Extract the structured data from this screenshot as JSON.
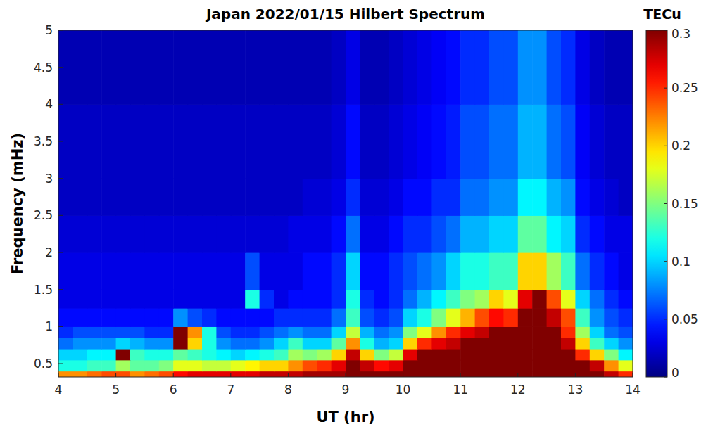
{
  "chart_data": {
    "type": "heatmap",
    "title": "Japan 2022/01/15 Hilbert Spectrum",
    "x_label": "UT (hr)",
    "y_label": "Frequency (mHz)",
    "xlim": [
      4,
      14
    ],
    "ylim": [
      0.32,
      5
    ],
    "xticks": [
      4,
      5,
      6,
      7,
      8,
      9,
      10,
      11,
      12,
      13,
      14
    ],
    "yticks": [
      0.5,
      1,
      1.5,
      2,
      2.5,
      3,
      3.5,
      4,
      4.5,
      5
    ],
    "x_edges": [
      4,
      4.25,
      4.5,
      4.75,
      5,
      5.25,
      5.5,
      5.75,
      6,
      6.25,
      6.5,
      6.75,
      7,
      7.25,
      7.5,
      7.75,
      8,
      8.25,
      8.5,
      8.75,
      9,
      9.25,
      9.5,
      9.75,
      10,
      10.25,
      10.5,
      10.75,
      11,
      11.25,
      11.5,
      11.75,
      12,
      12.25,
      12.5,
      12.75,
      13,
      13.25,
      13.5,
      13.75,
      14
    ],
    "y_edges": [
      0.32,
      0.4,
      0.55,
      0.7,
      0.85,
      1.0,
      1.25,
      1.5,
      2.0,
      2.5,
      3.0,
      4.0,
      5.0
    ],
    "cells": [
      [
        0.22,
        0.22,
        0.23,
        0.24,
        0.24,
        0.22,
        0.23,
        0.24,
        0.26,
        0.27,
        0.27,
        0.27,
        0.27,
        0.27,
        0.28,
        0.28,
        0.28,
        0.29,
        0.29,
        0.29,
        0.3,
        0.3,
        0.3,
        0.3,
        0.3,
        0.3,
        0.3,
        0.3,
        0.3,
        0.3,
        0.3,
        0.3,
        0.3,
        0.3,
        0.3,
        0.3,
        0.3,
        0.3,
        0.28,
        0.25
      ],
      [
        0.12,
        0.12,
        0.13,
        0.13,
        0.16,
        0.14,
        0.14,
        0.15,
        0.18,
        0.18,
        0.17,
        0.17,
        0.18,
        0.19,
        0.2,
        0.2,
        0.22,
        0.24,
        0.25,
        0.27,
        0.3,
        0.28,
        0.26,
        0.27,
        0.3,
        0.3,
        0.3,
        0.3,
        0.3,
        0.3,
        0.3,
        0.3,
        0.3,
        0.3,
        0.3,
        0.3,
        0.3,
        0.28,
        0.22,
        0.18
      ],
      [
        0.1,
        0.1,
        0.11,
        0.11,
        0.3,
        0.13,
        0.12,
        0.12,
        0.14,
        0.13,
        0.12,
        0.11,
        0.1,
        0.11,
        0.12,
        0.13,
        0.16,
        0.15,
        0.16,
        0.2,
        0.28,
        0.2,
        0.15,
        0.17,
        0.27,
        0.3,
        0.3,
        0.3,
        0.3,
        0.3,
        0.3,
        0.3,
        0.3,
        0.3,
        0.3,
        0.3,
        0.25,
        0.2,
        0.15,
        0.11
      ],
      [
        0.07,
        0.08,
        0.08,
        0.08,
        0.1,
        0.09,
        0.08,
        0.08,
        0.3,
        0.2,
        0.12,
        0.08,
        0.07,
        0.07,
        0.08,
        0.1,
        0.13,
        0.1,
        0.1,
        0.14,
        0.22,
        0.12,
        0.09,
        0.1,
        0.2,
        0.25,
        0.27,
        0.28,
        0.3,
        0.3,
        0.3,
        0.3,
        0.3,
        0.3,
        0.3,
        0.28,
        0.2,
        0.13,
        0.1,
        0.08
      ],
      [
        0.05,
        0.06,
        0.06,
        0.06,
        0.06,
        0.06,
        0.05,
        0.05,
        0.3,
        0.22,
        0.12,
        0.06,
        0.05,
        0.05,
        0.06,
        0.07,
        0.08,
        0.07,
        0.07,
        0.1,
        0.17,
        0.09,
        0.07,
        0.08,
        0.15,
        0.18,
        0.22,
        0.25,
        0.27,
        0.28,
        0.3,
        0.3,
        0.3,
        0.3,
        0.3,
        0.25,
        0.16,
        0.1,
        0.07,
        0.06
      ],
      [
        0.04,
        0.04,
        0.04,
        0.04,
        0.04,
        0.04,
        0.04,
        0.04,
        0.08,
        0.06,
        0.05,
        0.04,
        0.04,
        0.04,
        0.04,
        0.05,
        0.05,
        0.05,
        0.05,
        0.07,
        0.13,
        0.06,
        0.05,
        0.06,
        0.1,
        0.12,
        0.15,
        0.18,
        0.21,
        0.24,
        0.26,
        0.25,
        0.3,
        0.3,
        0.28,
        0.24,
        0.13,
        0.08,
        0.06,
        0.05
      ],
      [
        0.03,
        0.03,
        0.03,
        0.03,
        0.03,
        0.03,
        0.03,
        0.03,
        0.03,
        0.03,
        0.03,
        0.03,
        0.03,
        0.12,
        0.05,
        0.03,
        0.04,
        0.04,
        0.04,
        0.05,
        0.12,
        0.05,
        0.04,
        0.05,
        0.07,
        0.09,
        0.11,
        0.13,
        0.15,
        0.16,
        0.2,
        0.18,
        0.27,
        0.3,
        0.24,
        0.18,
        0.1,
        0.07,
        0.05,
        0.04
      ],
      [
        0.03,
        0.03,
        0.03,
        0.03,
        0.03,
        0.03,
        0.03,
        0.03,
        0.03,
        0.03,
        0.03,
        0.03,
        0.03,
        0.06,
        0.03,
        0.03,
        0.03,
        0.04,
        0.04,
        0.05,
        0.1,
        0.04,
        0.04,
        0.05,
        0.06,
        0.07,
        0.08,
        0.1,
        0.12,
        0.12,
        0.13,
        0.13,
        0.2,
        0.2,
        0.16,
        0.13,
        0.07,
        0.05,
        0.04,
        0.03
      ],
      [
        0.025,
        0.025,
        0.025,
        0.025,
        0.025,
        0.025,
        0.025,
        0.025,
        0.025,
        0.025,
        0.025,
        0.025,
        0.025,
        0.025,
        0.025,
        0.025,
        0.03,
        0.03,
        0.03,
        0.04,
        0.07,
        0.03,
        0.03,
        0.04,
        0.05,
        0.05,
        0.06,
        0.07,
        0.09,
        0.09,
        0.1,
        0.1,
        0.14,
        0.14,
        0.11,
        0.1,
        0.05,
        0.04,
        0.03,
        0.03
      ],
      [
        0.02,
        0.02,
        0.02,
        0.02,
        0.02,
        0.02,
        0.02,
        0.02,
        0.02,
        0.02,
        0.02,
        0.02,
        0.02,
        0.02,
        0.02,
        0.02,
        0.02,
        0.025,
        0.025,
        0.03,
        0.05,
        0.025,
        0.025,
        0.03,
        0.04,
        0.04,
        0.05,
        0.05,
        0.07,
        0.07,
        0.08,
        0.08,
        0.11,
        0.11,
        0.09,
        0.08,
        0.04,
        0.03,
        0.025,
        0.02
      ],
      [
        0.02,
        0.02,
        0.02,
        0.02,
        0.02,
        0.02,
        0.02,
        0.02,
        0.02,
        0.02,
        0.02,
        0.02,
        0.02,
        0.02,
        0.02,
        0.02,
        0.02,
        0.02,
        0.02,
        0.025,
        0.04,
        0.02,
        0.02,
        0.025,
        0.03,
        0.035,
        0.04,
        0.045,
        0.06,
        0.06,
        0.07,
        0.07,
        0.09,
        0.09,
        0.07,
        0.06,
        0.035,
        0.025,
        0.02,
        0.02
      ],
      [
        0.015,
        0.015,
        0.015,
        0.015,
        0.015,
        0.015,
        0.015,
        0.015,
        0.015,
        0.015,
        0.015,
        0.015,
        0.015,
        0.015,
        0.015,
        0.015,
        0.015,
        0.015,
        0.015,
        0.02,
        0.03,
        0.015,
        0.015,
        0.02,
        0.025,
        0.03,
        0.035,
        0.04,
        0.05,
        0.05,
        0.06,
        0.06,
        0.08,
        0.08,
        0.06,
        0.05,
        0.03,
        0.02,
        0.015,
        0.015
      ]
    ],
    "colorbar": {
      "label": "TECu",
      "range": [
        0,
        0.3
      ],
      "ticks": [
        0,
        0.05,
        0.1,
        0.15,
        0.2,
        0.25,
        0.3
      ]
    }
  }
}
